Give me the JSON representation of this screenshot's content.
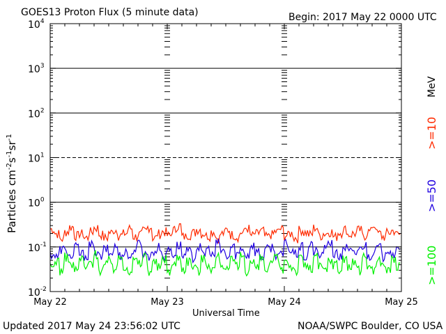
{
  "header": {
    "title": "GOES13 Proton Flux (5 minute data)",
    "begin": "Begin: 2017 May 22 0000 UTC"
  },
  "footer": {
    "updated": "Updated 2017 May 24 23:56:02 UTC",
    "credit": "NOAA/SWPC Boulder, CO USA"
  },
  "chart_data": {
    "type": "line",
    "title": "GOES13 Proton Flux (5 minute data)",
    "xlabel": "Universal Time",
    "ylabel_text": "Particles cm",
    "ylabel_sup1": "-2",
    "ylabel_mid": "s",
    "ylabel_sup2": "-1",
    "ylabel_mid2": "sr",
    "ylabel_sup3": "-1",
    "y_scale": "log",
    "ylim": [
      0.01,
      10000
    ],
    "x_ticks": [
      "May 22",
      "May 23",
      "May 24",
      "May 25"
    ],
    "y_ticks": [
      {
        "base": "10",
        "exp": "-2",
        "value": 0.01
      },
      {
        "base": "10",
        "exp": "-1",
        "value": 0.1
      },
      {
        "base": "10",
        "exp": "0",
        "value": 1
      },
      {
        "base": "10",
        "exp": "1",
        "value": 10
      },
      {
        "base": "10",
        "exp": "2",
        "value": 100
      },
      {
        "base": "10",
        "exp": "3",
        "value": 1000
      },
      {
        "base": "10",
        "exp": "4",
        "value": 10000
      }
    ],
    "reference_lines": [
      {
        "value": 1000,
        "style": "solid"
      },
      {
        "value": 100,
        "style": "solid"
      },
      {
        "value": 10,
        "style": "dashed"
      },
      {
        "value": 1,
        "style": "solid"
      },
      {
        "value": 0.1,
        "style": "solid"
      }
    ],
    "series": [
      {
        "name": ">=10",
        "color": "#ff2a00",
        "values": [
          0.25,
          0.2,
          0.15,
          0.22,
          0.28,
          0.18,
          0.2,
          0.16,
          0.22,
          0.27,
          0.19,
          0.16,
          0.21,
          0.24,
          0.18,
          0.2,
          0.26,
          0.17,
          0.19,
          0.23,
          0.28,
          0.16,
          0.2,
          0.22,
          0.18,
          0.24,
          0.3,
          0.17,
          0.19,
          0.21,
          0.25,
          0.2,
          0.18,
          0.22,
          0.16,
          0.2,
          0.24,
          0.19,
          0.17,
          0.21,
          0.26,
          0.18,
          0.2,
          0.23,
          0.17,
          0.19,
          0.22,
          0.25,
          0.18,
          0.2,
          0.16,
          0.24,
          0.21,
          0.19,
          0.27,
          0.18,
          0.2,
          0.22,
          0.17,
          0.21,
          0.25,
          0.19,
          0.2,
          0.24,
          0.18,
          0.22,
          0.3,
          0.2,
          0.17,
          0.21,
          0.23,
          0.19
        ]
      },
      {
        "name": ">=50",
        "color": "#1f00e0",
        "values": [
          0.07,
          0.06,
          0.09,
          0.08,
          0.06,
          0.1,
          0.07,
          0.065,
          0.11,
          0.08,
          0.06,
          0.09,
          0.07,
          0.1,
          0.065,
          0.08,
          0.06,
          0.09,
          0.12,
          0.07,
          0.065,
          0.08,
          0.1,
          0.06,
          0.09,
          0.07,
          0.11,
          0.065,
          0.08,
          0.06,
          0.1,
          0.07,
          0.09,
          0.065,
          0.12,
          0.08,
          0.06,
          0.1,
          0.07,
          0.09,
          0.065,
          0.11,
          0.08,
          0.06,
          0.09,
          0.1,
          0.07,
          0.065,
          0.12,
          0.08,
          0.07,
          0.1,
          0.06,
          0.11,
          0.08,
          0.065,
          0.09,
          0.13,
          0.07,
          0.06,
          0.1,
          0.08,
          0.07,
          0.09,
          0.11,
          0.065,
          0.08,
          0.1,
          0.06,
          0.09,
          0.07,
          0.08
        ]
      },
      {
        "name": ">=100",
        "color": "#00f000",
        "values": [
          0.035,
          0.05,
          0.03,
          0.06,
          0.04,
          0.03,
          0.055,
          0.035,
          0.045,
          0.07,
          0.03,
          0.04,
          0.05,
          0.032,
          0.06,
          0.038,
          0.03,
          0.05,
          0.042,
          0.065,
          0.03,
          0.045,
          0.035,
          0.055,
          0.03,
          0.04,
          0.06,
          0.033,
          0.05,
          0.038,
          0.03,
          0.055,
          0.042,
          0.032,
          0.06,
          0.04,
          0.03,
          0.05,
          0.036,
          0.065,
          0.03,
          0.045,
          0.034,
          0.055,
          0.03,
          0.04,
          0.06,
          0.032,
          0.05,
          0.038,
          0.03,
          0.055,
          0.04,
          0.032,
          0.062,
          0.036,
          0.03,
          0.05,
          0.042,
          0.03,
          0.058,
          0.035,
          0.045,
          0.03,
          0.06,
          0.038,
          0.032,
          0.05,
          0.04,
          0.03,
          0.055,
          0.036
        ]
      }
    ]
  }
}
